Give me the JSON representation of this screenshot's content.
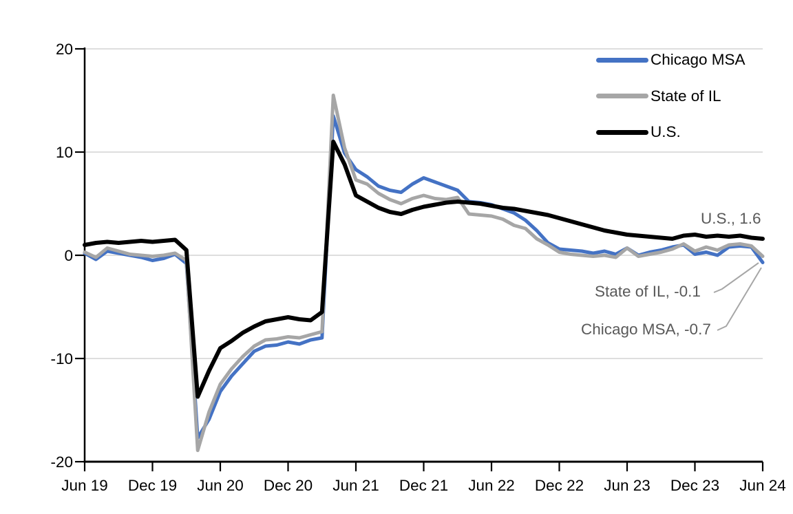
{
  "chart_data": {
    "type": "line",
    "title": "",
    "frequency": "monthly",
    "x_tick_labels": [
      "Jun 19",
      "Dec 19",
      "Jun 20",
      "Dec 20",
      "Jun 21",
      "Dec 21",
      "Jun 22",
      "Dec 22",
      "Jun 23",
      "Dec 23",
      "Jun 24"
    ],
    "x_tick_interval": 6,
    "y_ticks": [
      -20,
      -10,
      0,
      10,
      20
    ],
    "ylim": [
      -20,
      20
    ],
    "grid": "horizontal-only",
    "legend_position": "top-right-inside",
    "series": [
      {
        "name": "Chicago MSA",
        "color": "#4472C4",
        "stroke_width": 5,
        "values": [
          0.2,
          -0.4,
          0.4,
          0.2,
          0.0,
          -0.2,
          -0.5,
          -0.3,
          0.1,
          -0.8,
          -17.7,
          -15.9,
          -13.2,
          -11.7,
          -10.5,
          -9.3,
          -8.8,
          -8.7,
          -8.4,
          -8.6,
          -8.2,
          -8.0,
          13.5,
          9.9,
          8.3,
          7.6,
          6.7,
          6.3,
          6.1,
          6.9,
          7.5,
          7.1,
          6.7,
          6.3,
          5.2,
          5.1,
          4.9,
          4.5,
          4.1,
          3.4,
          2.4,
          1.2,
          0.6,
          0.5,
          0.4,
          0.2,
          0.4,
          0.1,
          0.7,
          0.0,
          0.3,
          0.5,
          0.8,
          1.0,
          0.1,
          0.3,
          0.0,
          0.8,
          0.9,
          0.8,
          -0.7
        ]
      },
      {
        "name": "State of IL",
        "color": "#A6A6A6",
        "stroke_width": 5,
        "values": [
          0.3,
          -0.2,
          0.7,
          0.4,
          0.1,
          0.0,
          -0.1,
          0.0,
          0.2,
          -0.5,
          -18.9,
          -15.2,
          -12.5,
          -11.0,
          -9.8,
          -8.8,
          -8.2,
          -8.1,
          -7.9,
          -8.0,
          -7.7,
          -7.4,
          15.5,
          10.4,
          7.3,
          6.9,
          6.0,
          5.4,
          5.0,
          5.5,
          5.8,
          5.5,
          5.4,
          5.6,
          4.0,
          3.9,
          3.8,
          3.5,
          2.9,
          2.6,
          1.6,
          1.0,
          0.3,
          0.1,
          0.0,
          -0.1,
          0.0,
          -0.2,
          0.7,
          -0.1,
          0.1,
          0.3,
          0.6,
          1.1,
          0.4,
          0.8,
          0.5,
          1.0,
          1.1,
          0.9,
          -0.1
        ]
      },
      {
        "name": "U.S.",
        "color": "#000000",
        "stroke_width": 6,
        "values": [
          1.0,
          1.2,
          1.3,
          1.2,
          1.3,
          1.4,
          1.3,
          1.4,
          1.5,
          0.5,
          -13.7,
          -11.2,
          -9.0,
          -8.3,
          -7.5,
          -6.9,
          -6.4,
          -6.2,
          -6.0,
          -6.2,
          -6.3,
          -5.5,
          11.0,
          8.8,
          5.8,
          5.2,
          4.6,
          4.2,
          4.0,
          4.4,
          4.7,
          4.9,
          5.1,
          5.2,
          5.1,
          5.0,
          4.8,
          4.6,
          4.5,
          4.3,
          4.1,
          3.9,
          3.6,
          3.3,
          3.0,
          2.7,
          2.4,
          2.2,
          2.0,
          1.9,
          1.8,
          1.7,
          1.6,
          1.9,
          2.0,
          1.8,
          1.9,
          1.8,
          1.9,
          1.7,
          1.6
        ]
      }
    ],
    "annotations": [
      {
        "label": "U.S., 1.6",
        "series": "U.S.",
        "value": 1.6
      },
      {
        "label": "State of IL, -0.1",
        "series": "State of IL",
        "value": -0.1
      },
      {
        "label": "Chicago MSA, -0.7",
        "series": "Chicago MSA",
        "value": -0.7
      }
    ],
    "colors": {
      "gridline": "#D9D9D9",
      "axis": "#000000",
      "annotation_text": "#595959",
      "leader_line": "#A6A6A6"
    }
  }
}
